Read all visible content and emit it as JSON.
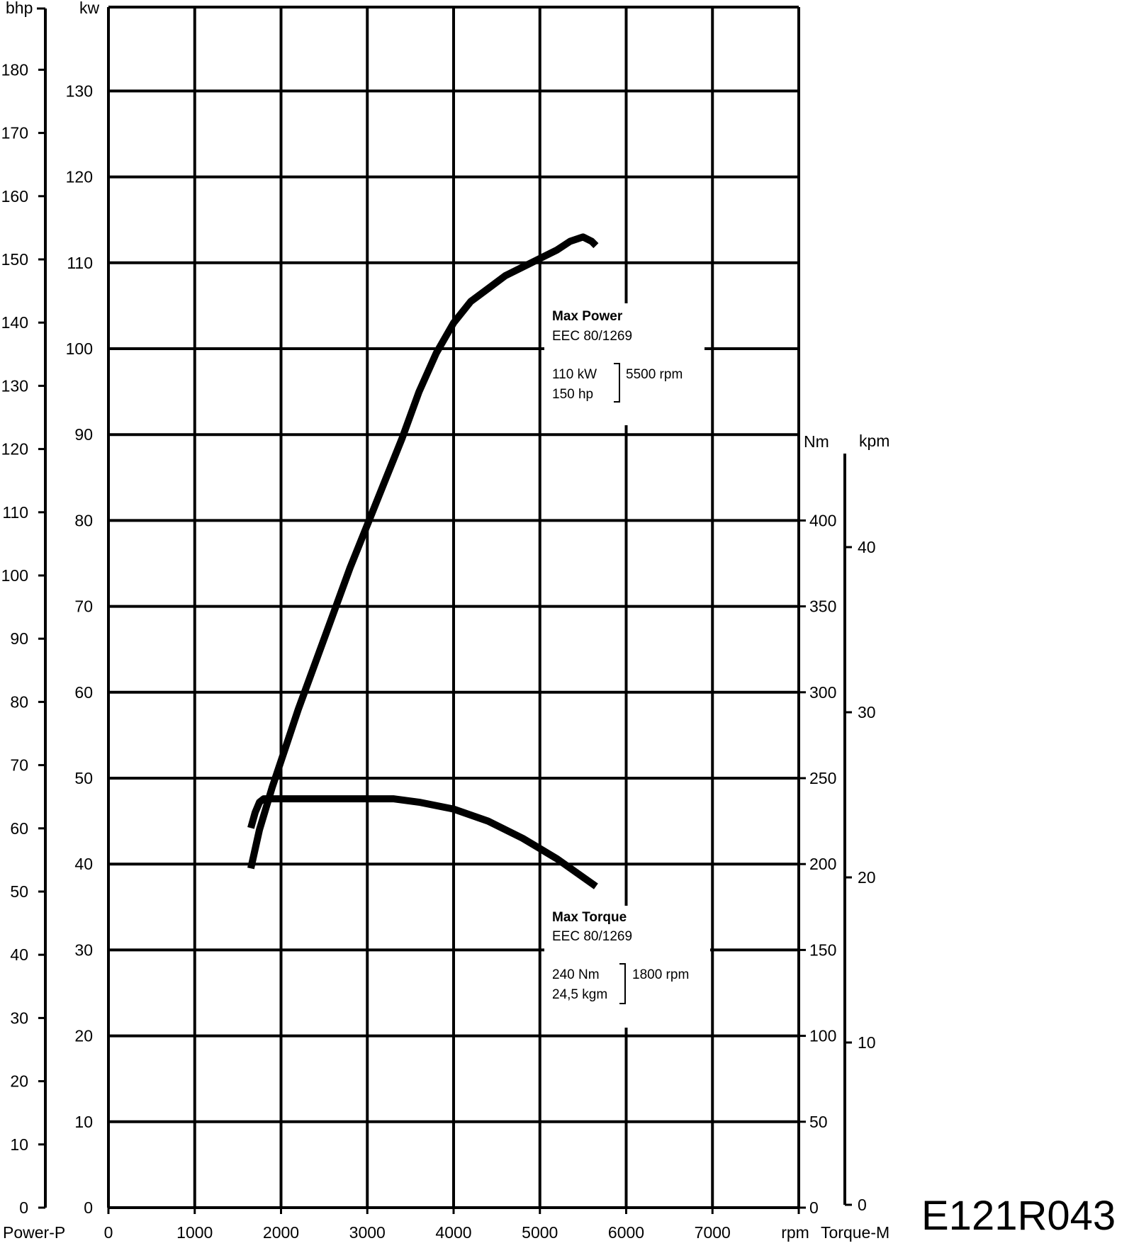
{
  "chart_data": {
    "type": "line",
    "x_axis": {
      "label": "rpm",
      "range": [
        0,
        8000
      ],
      "ticks": [
        0,
        1000,
        2000,
        3000,
        4000,
        5000,
        6000,
        7000
      ]
    },
    "axes": {
      "kw": {
        "unit": "kw",
        "range": [
          0,
          140
        ],
        "ticks": [
          0,
          10,
          20,
          30,
          40,
          50,
          60,
          70,
          80,
          90,
          100,
          110,
          120,
          130
        ]
      },
      "bhp": {
        "unit": "bhp",
        "caption": "Power-P",
        "range": [
          0,
          190
        ],
        "ticks": [
          0,
          10,
          20,
          30,
          40,
          50,
          60,
          70,
          80,
          90,
          100,
          110,
          120,
          130,
          140,
          150,
          160,
          170,
          180
        ]
      },
      "nm": {
        "unit": "Nm",
        "range": [
          0,
          440
        ],
        "ticks": [
          0,
          50,
          100,
          150,
          200,
          250,
          300,
          350,
          400
        ]
      },
      "kpm": {
        "unit": "kpm",
        "caption": "Torque-M",
        "range": [
          0,
          44.86
        ],
        "ticks": [
          0,
          10,
          20,
          30,
          40
        ]
      }
    },
    "grid": true,
    "series": [
      {
        "key": "power",
        "axis": "kw",
        "x": [
          1650,
          1750,
          1900,
          2050,
          2200,
          2400,
          2600,
          2800,
          3000,
          3200,
          3400,
          3600,
          3800,
          4000,
          4200,
          4400,
          4600,
          4800,
          5000,
          5200,
          5350,
          5500,
          5600,
          5650
        ],
        "y": [
          39.5,
          44,
          49,
          53.5,
          58,
          63.5,
          69,
          74.5,
          79.5,
          84.5,
          89.5,
          95,
          99.5,
          103,
          105.5,
          107,
          108.5,
          109.5,
          110.5,
          111.5,
          112.5,
          113,
          112.5,
          112
        ]
      },
      {
        "key": "torque",
        "axis": "nm",
        "x": [
          1650,
          1700,
          1750,
          1800,
          2000,
          2500,
          3000,
          3300,
          3600,
          4000,
          4400,
          4800,
          5200,
          5650
        ],
        "y": [
          221,
          230,
          236,
          238,
          238,
          238,
          238,
          238,
          236,
          232,
          225,
          215,
          203,
          187
        ]
      }
    ],
    "annotations": {
      "power": {
        "title": "Max Power",
        "standard": "EEC 80/1269",
        "line1": "110 kW",
        "line2": "150 hp",
        "rpm": "5500 rpm"
      },
      "torque": {
        "title": "Max  Torque",
        "standard": "EEC 80/1269",
        "line1": "240 Nm",
        "line2": "24,5 kgm",
        "rpm": "1800 rpm"
      }
    },
    "figure_code": "E121R043"
  }
}
